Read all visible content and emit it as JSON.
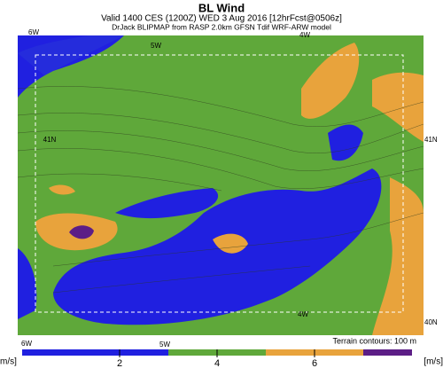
{
  "header": {
    "title": "BL Wind",
    "valid": "Valid 1400 CES (1200Z) WED 3 Aug 2016 [12hrFcst@0506z]",
    "source": "DrJack BLIPMAP from RASP 2.0km GFSN Tdif WRF-ARW model"
  },
  "map": {
    "labels": {
      "top_left": "6W",
      "top_mid": "5W",
      "top_right": "4W",
      "left_lat": "41N",
      "right_lat": "41N",
      "right_bottom_lat": "40N",
      "bottom_inner": "4W",
      "bottom_left": "6W",
      "bottom_mid": "5W"
    },
    "terrain_note": "Terrain contours: 100 m"
  },
  "colorbar": {
    "unit_left": "m/s]",
    "unit_right": "[m/s]",
    "lim": [
      0,
      8
    ],
    "ticks": [
      2,
      4,
      6
    ],
    "segments": [
      {
        "from": 0,
        "to": 3,
        "color": "#2020e0"
      },
      {
        "from": 3,
        "to": 5,
        "color": "#5fa83a"
      },
      {
        "from": 5,
        "to": 7,
        "color": "#e8a33c"
      },
      {
        "from": 7,
        "to": 8,
        "color": "#5c1e86"
      }
    ]
  }
}
